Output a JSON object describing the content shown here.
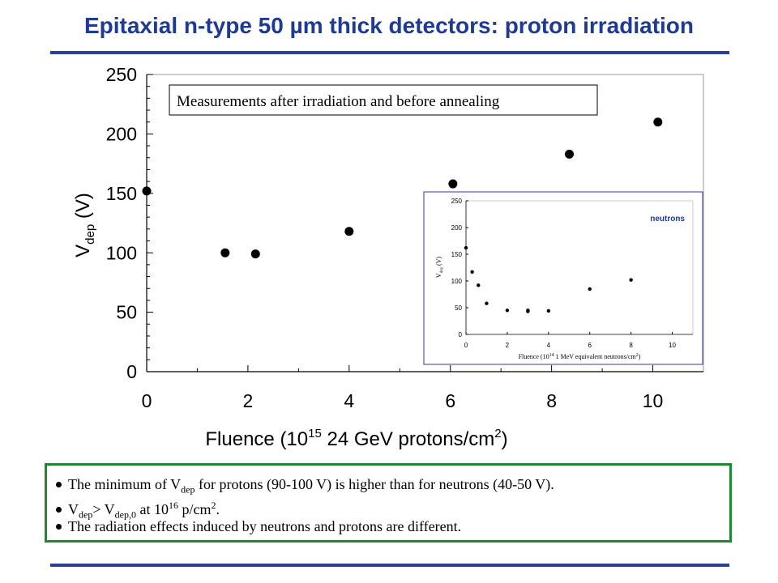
{
  "title": "Epitaxial n-type 50 µm thick detectors: proton irradiation",
  "chart_data": [
    {
      "type": "scatter",
      "xlabel": {
        "base": "Fluence (10",
        "sup": "15",
        "rest": " 24 GeV protons/cm",
        "sup2": "2",
        "end": ")"
      },
      "ylabel": {
        "base": "V",
        "sub": "dep",
        "rest": " (V)"
      },
      "xlim": [
        0,
        11
      ],
      "ylim": [
        0,
        250
      ],
      "xticks": [
        0,
        2,
        4,
        6,
        8,
        10
      ],
      "yticks": [
        0,
        50,
        100,
        150,
        200,
        250
      ],
      "grid": false,
      "annotation": "Measurements after irradiation and before annealing",
      "points": [
        {
          "x": 0,
          "y": 152
        },
        {
          "x": 1.55,
          "y": 100
        },
        {
          "x": 2.15,
          "y": 99
        },
        {
          "x": 4.0,
          "y": 118
        },
        {
          "x": 6.05,
          "y": 158
        },
        {
          "x": 8.35,
          "y": 183
        },
        {
          "x": 10.1,
          "y": 210
        }
      ]
    },
    {
      "type": "scatter",
      "xlabel": {
        "base": "Fluence (10",
        "sup": "14",
        "rest": " 1 MeV equivalent neutrons/cm",
        "sup2": "2",
        "end": ")"
      },
      "ylabel": {
        "base": "V",
        "sub": "dep",
        "rest": " (V)"
      },
      "xlim": [
        0,
        11
      ],
      "ylim": [
        0,
        250
      ],
      "xticks": [
        0,
        2,
        4,
        6,
        8,
        10
      ],
      "yticks": [
        0,
        50,
        100,
        150,
        200,
        250
      ],
      "legend": "neutrons",
      "points": [
        {
          "x": 0,
          "y": 162
        },
        {
          "x": 0.3,
          "y": 117
        },
        {
          "x": 0.6,
          "y": 92
        },
        {
          "x": 1.0,
          "y": 58
        },
        {
          "x": 2.0,
          "y": 45
        },
        {
          "x": 3.0,
          "y": 45
        },
        {
          "x": 3.0,
          "y": 43
        },
        {
          "x": 4.0,
          "y": 44
        },
        {
          "x": 6.0,
          "y": 85
        },
        {
          "x": 8.0,
          "y": 102
        }
      ]
    }
  ],
  "notes": {
    "line1": {
      "a": "The minimum of V",
      "sub": "dep",
      "b": " for protons (90-100 V) is higher than for neutrons  (40-50 V)."
    },
    "line2": {
      "a": "V",
      "sub1": "dep",
      "b": "> V",
      "sub2": "dep,0",
      "c": " at 10",
      "sup": "16",
      "d": " p/cm",
      "sup2": "2",
      "e": "."
    },
    "line3": {
      "a": "The radiation effects induced by neutrons and protons are different."
    }
  },
  "colors": {
    "title": "#1f3a93",
    "rule": "#2b3f96",
    "note_border": "#1e8a2e",
    "inset_border": "#2b3f96",
    "inset_legend": "#1f3a93"
  }
}
